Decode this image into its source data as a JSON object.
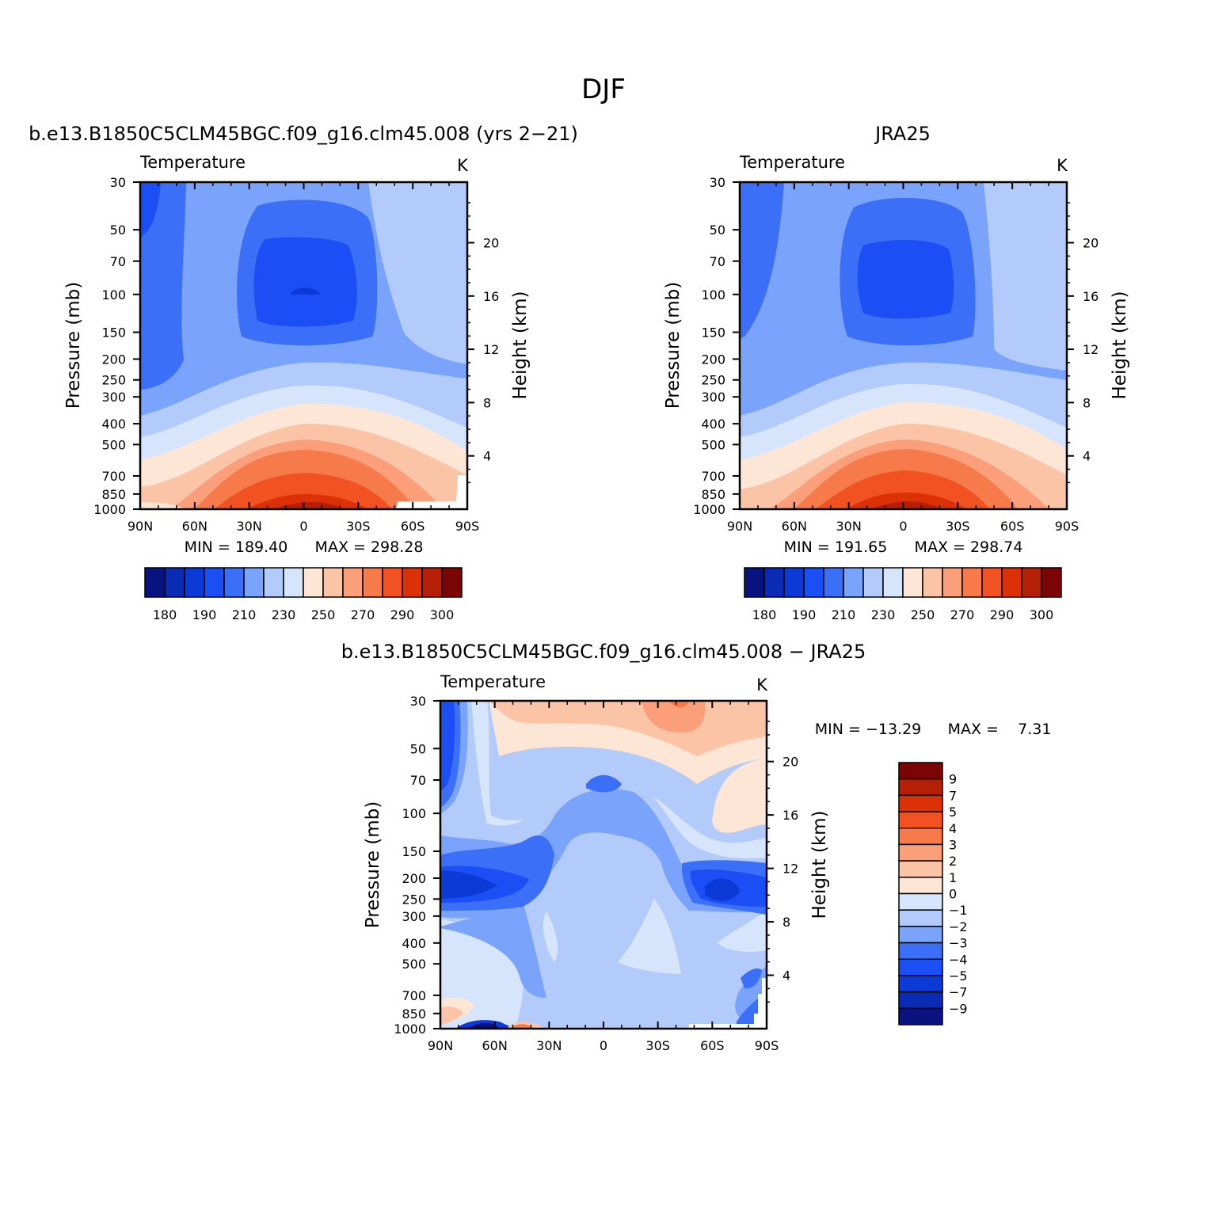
{
  "page_title": "DJF",
  "colors": {
    "abs": [
      "#08137f",
      "#0a2bb4",
      "#0b3ad6",
      "#1b4ef5",
      "#3c6ff7",
      "#7aa3fb",
      "#b2cbfb",
      "#d6e5fc",
      "#fde6d6",
      "#fcc4a6",
      "#fa9f79",
      "#f77a4b",
      "#f25222",
      "#dc3106",
      "#b41f06",
      "#7b0404"
    ],
    "diff": [
      "#08137f",
      "#0a2bb4",
      "#0b3ad6",
      "#1b4ef5",
      "#3c6ff7",
      "#7aa3fb",
      "#b2cbfb",
      "#d6e5fc",
      "#fde6d6",
      "#fcc4a6",
      "#fa9f79",
      "#f77a4b",
      "#f25222",
      "#dc3106",
      "#b41f06",
      "#7b0404"
    ]
  },
  "chart_data": [
    {
      "type": "heatmap",
      "title": "b.e13.B1850C5CLM45BGC.f09_g16.clm45.008 (yrs 2−21)",
      "variable": "Temperature",
      "units": "K",
      "ylabel": "Pressure (mb)",
      "y2label": "Height (km)",
      "x_ticks": [
        "90N",
        "60N",
        "30N",
        "0",
        "30S",
        "60S",
        "90S"
      ],
      "y_ticks": [
        30,
        50,
        70,
        100,
        150,
        200,
        250,
        300,
        400,
        500,
        700,
        850,
        1000
      ],
      "y2_ticks": [
        20,
        16,
        12,
        8,
        4
      ],
      "ylim": [
        1000,
        30
      ],
      "log_y": true,
      "min_label": "MIN = 189.40",
      "max_label": "MAX = 298.28",
      "levels": [
        180,
        185,
        190,
        200,
        210,
        220,
        230,
        240,
        250,
        260,
        270,
        280,
        290,
        295,
        300
      ],
      "colorbar_labels": [
        "180",
        "190",
        "210",
        "230",
        "250",
        "270",
        "290",
        "300"
      ]
    },
    {
      "type": "heatmap",
      "title": "JRA25",
      "variable": "Temperature",
      "units": "K",
      "ylabel": "Pressure (mb)",
      "y2label": "Height (km)",
      "x_ticks": [
        "90N",
        "60N",
        "30N",
        "0",
        "30S",
        "60S",
        "90S"
      ],
      "y_ticks": [
        30,
        50,
        70,
        100,
        150,
        200,
        250,
        300,
        400,
        500,
        700,
        850,
        1000
      ],
      "y2_ticks": [
        20,
        16,
        12,
        8,
        4
      ],
      "ylim": [
        1000,
        30
      ],
      "log_y": true,
      "min_label": "MIN = 191.65",
      "max_label": "MAX = 298.74",
      "levels": [
        180,
        185,
        190,
        200,
        210,
        220,
        230,
        240,
        250,
        260,
        270,
        280,
        290,
        295,
        300
      ],
      "colorbar_labels": [
        "180",
        "190",
        "210",
        "230",
        "250",
        "270",
        "290",
        "300"
      ]
    },
    {
      "type": "heatmap",
      "title": "b.e13.B1850C5CLM45BGC.f09_g16.clm45.008 − JRA25",
      "variable": "Temperature",
      "units": "K",
      "ylabel": "Pressure (mb)",
      "y2label": "Height (km)",
      "x_ticks": [
        "90N",
        "60N",
        "30N",
        "0",
        "30S",
        "60S",
        "90S"
      ],
      "y_ticks": [
        30,
        50,
        70,
        100,
        150,
        200,
        250,
        300,
        400,
        500,
        700,
        850,
        1000
      ],
      "y2_ticks": [
        20,
        16,
        12,
        8,
        4
      ],
      "ylim": [
        1000,
        30
      ],
      "log_y": true,
      "min_label": "MIN = −13.29",
      "max_label": "MAX =    7.31",
      "levels": [
        -9,
        -7,
        -5,
        -4,
        -3,
        -2,
        -1,
        0,
        1,
        2,
        3,
        4,
        5,
        7,
        9
      ],
      "colorbar_labels": [
        "9",
        "7",
        "5",
        "4",
        "3",
        "2",
        "1",
        "0",
        "−1",
        "−2",
        "−3",
        "−4",
        "−5",
        "−7",
        "−9"
      ]
    }
  ]
}
